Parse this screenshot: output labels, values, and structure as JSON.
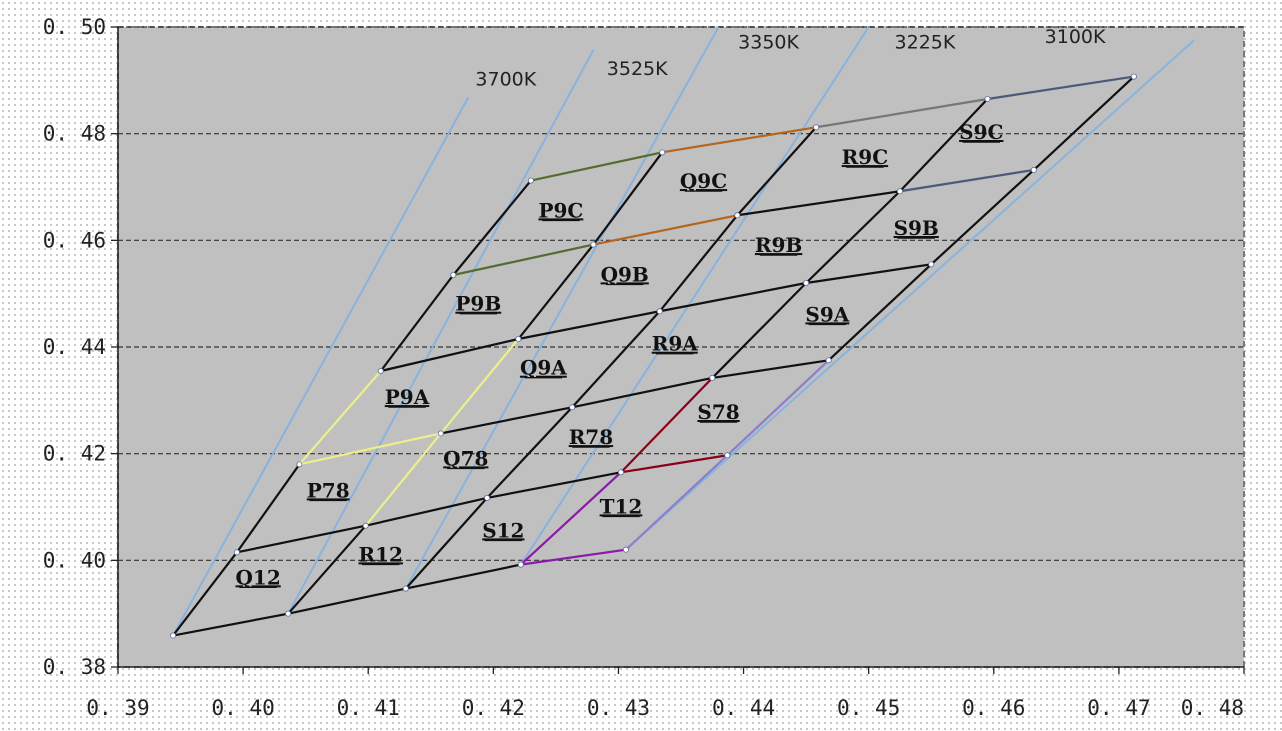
{
  "chart_data": {
    "type": "scatter",
    "title": "",
    "xlabel": "",
    "ylabel": "",
    "xlim": [
      0.39,
      0.48
    ],
    "ylim": [
      0.38,
      0.5
    ],
    "grid": "horizontal dashed",
    "x_ticks": [
      "0. 39",
      "0. 40",
      "0. 41",
      "0. 42",
      "0. 43",
      "0. 44",
      "0. 45",
      "0. 46",
      "0. 47",
      "0. 48"
    ],
    "y_ticks": [
      "0. 38",
      "0. 40",
      "0. 42",
      "0. 44",
      "0. 46",
      "0. 48",
      "0. 50"
    ],
    "cct_lines": [
      {
        "label": "3700K",
        "x": [
          0.3944,
          0.418
        ],
        "y": [
          0.3859,
          0.4868
        ]
      },
      {
        "label": "3525K",
        "x": [
          0.4036,
          0.428
        ],
        "y": [
          0.39,
          0.4957
        ]
      },
      {
        "label": "3350K",
        "x": [
          0.413,
          0.438
        ],
        "y": [
          0.3947,
          0.5
        ]
      },
      {
        "label": "3225K",
        "x": [
          0.4222,
          0.45
        ],
        "y": [
          0.3992,
          0.5
        ]
      },
      {
        "label": "3100K",
        "x": [
          0.4306,
          0.476
        ],
        "y": [
          0.402,
          0.4975
        ]
      }
    ],
    "cct_label_positions": [
      {
        "label": "3700K",
        "x": 0.421,
        "y": 0.489
      },
      {
        "label": "3525K",
        "x": 0.4315,
        "y": 0.491
      },
      {
        "label": "3350K",
        "x": 0.442,
        "y": 0.496
      },
      {
        "label": "3225K",
        "x": 0.4545,
        "y": 0.496
      },
      {
        "label": "3100K",
        "x": 0.4665,
        "y": 0.497
      }
    ],
    "points": {
      "a0": [
        0.3944,
        0.3859
      ],
      "a1": [
        0.3995,
        0.4015
      ],
      "a2": [
        0.4045,
        0.418
      ],
      "a3": [
        0.411,
        0.4355
      ],
      "a4": [
        0.4168,
        0.4535
      ],
      "a5": [
        0.423,
        0.4712
      ],
      "b0": [
        0.4036,
        0.39
      ],
      "b1": [
        0.4098,
        0.4065
      ],
      "b2": [
        0.4158,
        0.4238
      ],
      "b3": [
        0.422,
        0.4415
      ],
      "b4": [
        0.428,
        0.4592
      ],
      "b5": [
        0.4335,
        0.4765
      ],
      "c0": [
        0.413,
        0.3947
      ],
      "c1": [
        0.4195,
        0.4117
      ],
      "c2": [
        0.4263,
        0.4287
      ],
      "c3": [
        0.4333,
        0.4467
      ],
      "c4": [
        0.4395,
        0.4647
      ],
      "c5": [
        0.4458,
        0.4812
      ],
      "d0": [
        0.4222,
        0.3992
      ],
      "d1": [
        0.4302,
        0.4165
      ],
      "d2": [
        0.4375,
        0.4342
      ],
      "d3": [
        0.445,
        0.452
      ],
      "d4": [
        0.4525,
        0.4692
      ],
      "d5": [
        0.4595,
        0.4865
      ],
      "e0": [
        0.4306,
        0.402
      ],
      "e1": [
        0.4387,
        0.4197
      ],
      "e2": [
        0.4468,
        0.4375
      ],
      "e3": [
        0.455,
        0.4555
      ],
      "e4": [
        0.4632,
        0.4732
      ],
      "e5": [
        0.4712,
        0.4907
      ]
    },
    "bins": [
      {
        "label": "Q12",
        "x": 0.4012,
        "y": 0.3955,
        "corners": [
          "a0",
          "b0",
          "b1",
          "a1"
        ]
      },
      {
        "label": "R12",
        "x": 0.411,
        "y": 0.3998,
        "corners": [
          "b0",
          "c0",
          "c1",
          "b1"
        ]
      },
      {
        "label": "S12",
        "x": 0.4208,
        "y": 0.4043,
        "corners": [
          "c0",
          "d0",
          "d1",
          "c1"
        ]
      },
      {
        "label": "T12",
        "x": 0.4302,
        "y": 0.4088,
        "corners": [
          "d0",
          "e0",
          "e1",
          "d1"
        ]
      },
      {
        "label": "P78",
        "x": 0.4068,
        "y": 0.4118,
        "corners": [
          "a1",
          "b1",
          "b2",
          "a2"
        ]
      },
      {
        "label": "Q78",
        "x": 0.4178,
        "y": 0.4178,
        "corners": [
          "b1",
          "c1",
          "c2",
          "b2"
        ]
      },
      {
        "label": "R78",
        "x": 0.4278,
        "y": 0.4218,
        "corners": [
          "c1",
          "d1",
          "d2",
          "c2"
        ]
      },
      {
        "label": "S78",
        "x": 0.438,
        "y": 0.4265,
        "corners": [
          "d1",
          "e1",
          "e2",
          "d2"
        ]
      },
      {
        "label": "P9A",
        "x": 0.4131,
        "y": 0.4293,
        "corners": [
          "a2",
          "b2",
          "b3",
          "a3"
        ]
      },
      {
        "label": "Q9A",
        "x": 0.424,
        "y": 0.4348,
        "corners": [
          "b2",
          "c2",
          "c3",
          "b3"
        ]
      },
      {
        "label": "R9A",
        "x": 0.4345,
        "y": 0.4393,
        "corners": [
          "c2",
          "d2",
          "d3",
          "c3"
        ]
      },
      {
        "label": "S9A",
        "x": 0.4467,
        "y": 0.4448,
        "corners": [
          "d2",
          "e2",
          "e3",
          "d3"
        ]
      },
      {
        "label": "P9B",
        "x": 0.4188,
        "y": 0.4468,
        "corners": [
          "a3",
          "b3",
          "b4",
          "a4"
        ]
      },
      {
        "label": "Q9B",
        "x": 0.4305,
        "y": 0.4523,
        "corners": [
          "b3",
          "c3",
          "c4",
          "b4"
        ]
      },
      {
        "label": "R9B",
        "x": 0.4428,
        "y": 0.4578,
        "corners": [
          "c3",
          "d3",
          "d4",
          "c4"
        ]
      },
      {
        "label": "S9B",
        "x": 0.4538,
        "y": 0.461,
        "corners": [
          "d3",
          "e3",
          "e4",
          "d4"
        ]
      },
      {
        "label": "P9C",
        "x": 0.4254,
        "y": 0.4643,
        "corners": [
          "a4",
          "b4",
          "b5",
          "a5"
        ]
      },
      {
        "label": "Q9C",
        "x": 0.4368,
        "y": 0.4698,
        "corners": [
          "b4",
          "c4",
          "c5",
          "b5"
        ]
      },
      {
        "label": "R9C",
        "x": 0.4497,
        "y": 0.4743,
        "corners": [
          "c4",
          "d4",
          "d5",
          "c5"
        ]
      },
      {
        "label": "S9C",
        "x": 0.459,
        "y": 0.479,
        "corners": [
          "d4",
          "e4",
          "e5",
          "d5"
        ]
      }
    ],
    "colors": {
      "plot_background": "#c0c0c0",
      "grid": "#333333",
      "cct_line": "#87b3df",
      "grid_line": "#111111",
      "seg_P9C": "#556b2f",
      "seg_Q9C": "#b5651d",
      "seg_R9C_top": "#777777",
      "seg_S9C_top": "#4a5a78",
      "seg_yellow": "#ecef8a",
      "seg_red": "#8b0018",
      "seg_purple": "#8a1aa8",
      "seg_lavender": "#8c7ecb",
      "marker": "#ffffff"
    }
  }
}
